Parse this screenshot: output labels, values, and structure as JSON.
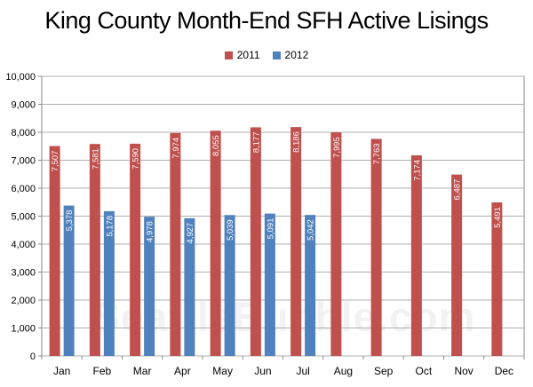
{
  "chart_data": {
    "type": "bar",
    "title": "King County Month-End SFH Active Lisings",
    "xlabel": "",
    "ylabel": "",
    "categories": [
      "Jan",
      "Feb",
      "Mar",
      "Apr",
      "May",
      "Jun",
      "Jul",
      "Aug",
      "Sep",
      "Oct",
      "Nov",
      "Dec"
    ],
    "series": [
      {
        "name": "2011",
        "color": "#c0504d",
        "values": [
          7507,
          7581,
          7590,
          7974,
          8055,
          8177,
          8186,
          7995,
          7763,
          7174,
          6487,
          5491
        ]
      },
      {
        "name": "2012",
        "color": "#4f81bd",
        "values": [
          5378,
          5178,
          4978,
          4927,
          5039,
          5091,
          5042,
          null,
          null,
          null,
          null,
          null
        ]
      }
    ],
    "value_labels": {
      "2011": [
        "7,507",
        "7,581",
        "7,590",
        "7,974",
        "8,055",
        "8,177",
        "8,186",
        "7,995",
        "7,763",
        "7,174",
        "6,487",
        "5,491"
      ],
      "2012": [
        "5,378",
        "5,178",
        "4,978",
        "4,927",
        "5,039",
        "5,091",
        "5,042",
        "",
        "",
        "",
        "",
        ""
      ]
    },
    "ylim": [
      0,
      10000
    ],
    "yticks": [
      0,
      1000,
      2000,
      3000,
      4000,
      5000,
      6000,
      7000,
      8000,
      9000,
      10000
    ],
    "ytick_labels": [
      "0",
      "1,000",
      "2,000",
      "3,000",
      "4,000",
      "5,000",
      "6,000",
      "7,000",
      "8,000",
      "9,000",
      "10,000"
    ],
    "grid": true,
    "legend_position": "top-center"
  },
  "watermark": "SeattleBubble.com"
}
